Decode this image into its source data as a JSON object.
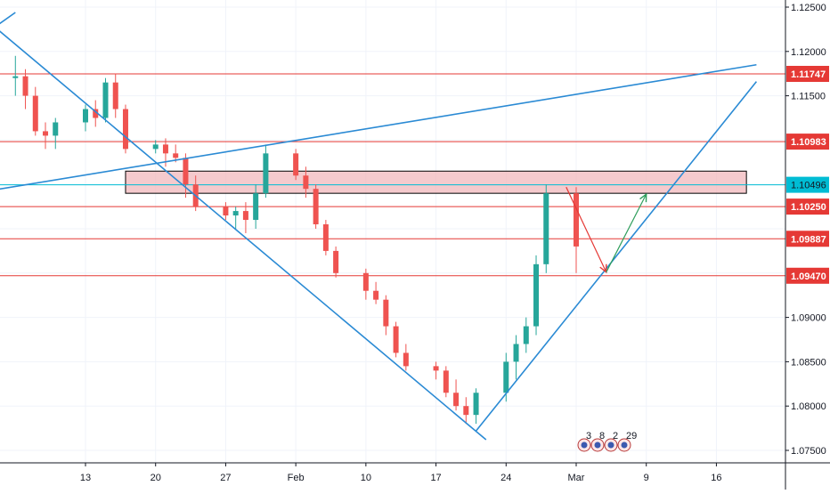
{
  "chart_data": {
    "type": "candlestick",
    "x_tick_labels": [
      "13",
      "20",
      "27",
      "Feb",
      "10",
      "17",
      "24",
      "Mar",
      "9",
      "16"
    ],
    "y_tick_labels": [
      "1.12500",
      "1.12000",
      "1.11500",
      "1.09000",
      "1.08500",
      "1.08000",
      "1.07500"
    ],
    "ylim": [
      1.0735,
      1.1266
    ],
    "grid": true,
    "colors": {
      "up": "#26a69a",
      "down": "#ef5350",
      "trendline": "#2a8ad4",
      "level": "#e53935",
      "current_price": "#00bcd4",
      "zone_fill": "#f2b8bc"
    },
    "horizontal_levels": [
      {
        "price": 1.11747,
        "label": "1.11747"
      },
      {
        "price": 1.10983,
        "label": "1.10983"
      },
      {
        "price": 1.1025,
        "label": "1.10250"
      },
      {
        "price": 1.09887,
        "label": "1.09887"
      },
      {
        "price": 1.0947,
        "label": "1.09470"
      }
    ],
    "current_price": {
      "price": 1.10496,
      "label": "1.10496"
    },
    "resistance_zone": {
      "x_start": "Jan 17",
      "x_end": "Mar 19",
      "price_top": 1.1065,
      "price_bottom": 1.104
    },
    "trendlines": [
      {
        "from": [
          "Jan 4",
          1.1227
        ],
        "to": [
          "Feb 22",
          1.0762
        ]
      },
      {
        "from": [
          "Jan 4",
          1.1044
        ],
        "to": [
          "Mar 20",
          1.1185
        ]
      },
      {
        "from": [
          "Feb 21",
          1.0772
        ],
        "to": [
          "Mar 20",
          1.1166
        ]
      },
      {
        "from": [
          "Jan 4",
          1.1228
        ],
        "to": [
          "Jan 6",
          1.1244
        ]
      }
    ],
    "projection_arrows": [
      {
        "color": "down",
        "from": [
          "Mar 1",
          1.1047
        ],
        "to": [
          "Mar 5",
          1.0951
        ]
      },
      {
        "color": "up",
        "from": [
          "Mar 5",
          1.0951
        ],
        "to": [
          "Mar 9",
          1.1039
        ]
      }
    ],
    "event_flags": [
      "3",
      "8",
      "2",
      "29"
    ],
    "candles": [
      [
        "Jan 6",
        1.117,
        1.1195,
        1.115,
        1.1172
      ],
      [
        "Jan 7",
        1.1172,
        1.118,
        1.1135,
        1.115
      ],
      [
        "Jan 8",
        1.115,
        1.116,
        1.1105,
        1.111
      ],
      [
        "Jan 9",
        1.111,
        1.112,
        1.109,
        1.1105
      ],
      [
        "Jan 10",
        1.1105,
        1.1125,
        1.109,
        1.112
      ],
      [
        "Jan 13",
        1.112,
        1.114,
        1.111,
        1.1135
      ],
      [
        "Jan 14",
        1.1135,
        1.1145,
        1.1115,
        1.1125
      ],
      [
        "Jan 15",
        1.1125,
        1.117,
        1.112,
        1.1165
      ],
      [
        "Jan 16",
        1.1165,
        1.1175,
        1.1125,
        1.1135
      ],
      [
        "Jan 17",
        1.1135,
        1.114,
        1.1085,
        1.109
      ],
      [
        "Jan 20",
        1.109,
        1.11,
        1.1085,
        1.1095
      ],
      [
        "Jan 21",
        1.1095,
        1.1102,
        1.107,
        1.1085
      ],
      [
        "Jan 22",
        1.1085,
        1.1095,
        1.1075,
        1.108
      ],
      [
        "Jan 23",
        1.108,
        1.1085,
        1.1035,
        1.105
      ],
      [
        "Jan 24",
        1.105,
        1.106,
        1.102,
        1.1025
      ],
      [
        "Jan 27",
        1.1025,
        1.103,
        1.101,
        1.1015
      ],
      [
        "Jan 28",
        1.1015,
        1.1025,
        1.1,
        1.102
      ],
      [
        "Jan 29",
        1.102,
        1.103,
        1.0995,
        1.101
      ],
      [
        "Jan 30",
        1.101,
        1.105,
        1.1,
        1.104
      ],
      [
        "Jan 31",
        1.104,
        1.1095,
        1.1035,
        1.1085
      ],
      [
        "Feb 3",
        1.1085,
        1.109,
        1.1055,
        1.106
      ],
      [
        "Feb 4",
        1.106,
        1.107,
        1.1035,
        1.1045
      ],
      [
        "Feb 5",
        1.1045,
        1.105,
        1.1,
        1.1005
      ],
      [
        "Feb 6",
        1.1005,
        1.101,
        1.097,
        1.0975
      ],
      [
        "Feb 7",
        1.0975,
        1.098,
        1.0945,
        1.095
      ],
      [
        "Feb 10",
        1.095,
        1.0955,
        1.092,
        1.093
      ],
      [
        "Feb 11",
        1.093,
        1.094,
        1.0915,
        1.092
      ],
      [
        "Feb 12",
        1.092,
        1.0925,
        1.088,
        1.089
      ],
      [
        "Feb 13",
        1.089,
        1.0895,
        1.0855,
        1.086
      ],
      [
        "Feb 14",
        1.086,
        1.087,
        1.084,
        1.0845
      ],
      [
        "Feb 17",
        1.0845,
        1.085,
        1.083,
        1.084
      ],
      [
        "Feb 18",
        1.084,
        1.0845,
        1.081,
        1.0815
      ],
      [
        "Feb 19",
        1.0815,
        1.083,
        1.0795,
        1.08
      ],
      [
        "Feb 20",
        1.08,
        1.081,
        1.078,
        1.079
      ],
      [
        "Feb 21",
        1.079,
        1.082,
        1.078,
        1.0815
      ],
      [
        "Feb 24",
        1.0815,
        1.086,
        1.0805,
        1.085
      ],
      [
        "Feb 25",
        1.085,
        1.088,
        1.083,
        1.087
      ],
      [
        "Feb 26",
        1.087,
        1.09,
        1.086,
        1.089
      ],
      [
        "Feb 27",
        1.089,
        1.097,
        1.088,
        1.096
      ],
      [
        "Feb 28",
        1.096,
        1.105,
        1.095,
        1.104
      ],
      [
        "Mar 2",
        1.104,
        1.1047,
        1.095,
        1.098
      ]
    ]
  }
}
